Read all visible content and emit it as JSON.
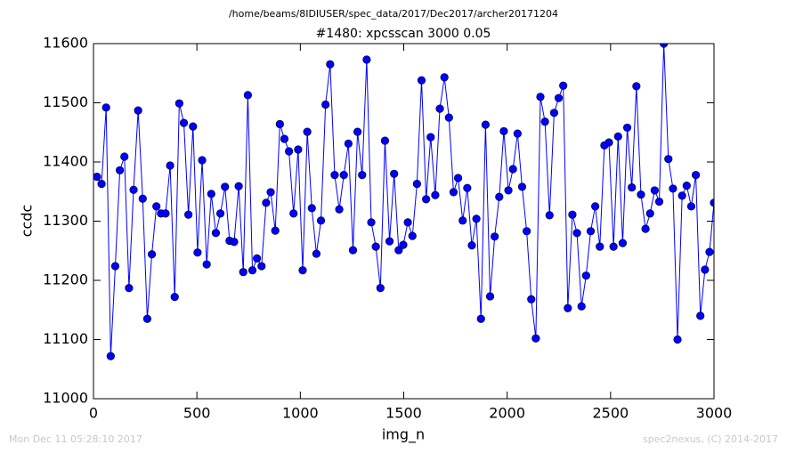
{
  "chart_data": {
    "type": "line",
    "suptitle": "/home/beams/8IDIUSER/spec_data/2017/Dec2017/archer20171204",
    "title": "#1480: xpcsscan 3000 0.05",
    "xlabel": "img_n",
    "ylabel": "ccdc",
    "timestamp": "Mon Dec 11 05:28:10 2017",
    "credit": "spec2nexus, (C) 2014-2017",
    "color": "#0000ff",
    "x": [
      17,
      39.1,
      61.2,
      83.3,
      105.4,
      127.5,
      149.6,
      171.7,
      193.8,
      215.9,
      238,
      260.1,
      282.2,
      304.3,
      326.4,
      348.5,
      370.6,
      392.7,
      414.8,
      436.9,
      459,
      481.1,
      503.2,
      525.3,
      547.4,
      569.5,
      591.6,
      613.7,
      635.8,
      657.9,
      680,
      702.1,
      724.2,
      746.3,
      768.4,
      790.5,
      812.6,
      834.7,
      856.8,
      878.9,
      901,
      923.1,
      945.2,
      967.3,
      989.4,
      1011.5,
      1033.6,
      1055.7,
      1077.8,
      1099.9,
      1122,
      1144.1,
      1166.2,
      1188.3,
      1210.4,
      1232.5,
      1254.6,
      1276.7,
      1298.8,
      1320.9,
      1343,
      1365.1,
      1387.2,
      1409.3,
      1431.4,
      1453.5,
      1475.6,
      1497.7,
      1519.8,
      1541.9,
      1564,
      1586.1,
      1608.2,
      1630.3,
      1652.4,
      1674.5,
      1696.6,
      1718.7,
      1740.8,
      1762.9,
      1785,
      1807.1,
      1829.2,
      1851.3,
      1873.4,
      1895.5,
      1917.6,
      1939.7,
      1961.8,
      1983.9,
      2006,
      2028.1,
      2050.2,
      2072.3,
      2094.4,
      2116.5,
      2138.6,
      2160.7,
      2182.8,
      2204.9,
      2227,
      2249.1,
      2271.2,
      2293.3,
      2315.4,
      2337.5,
      2359.6,
      2381.7,
      2403.8,
      2425.9,
      2448,
      2470.1,
      2492.2,
      2514.3,
      2536.4,
      2558.5,
      2580.6,
      2602.7,
      2624.8,
      2646.9,
      2669,
      2691.1,
      2713.2,
      2735.3,
      2757.4,
      2779.5,
      2801.6,
      2823.7,
      2845.8,
      2867.9,
      2890,
      2912.1,
      2934.2,
      2956.3,
      2978.4,
      3000
    ],
    "values": [
      11375,
      11363,
      11492,
      11072,
      11224,
      11386,
      11409,
      11187,
      11353,
      11487,
      11338,
      11135,
      11244,
      11325,
      11313,
      11313,
      11394,
      11172,
      11499,
      11466,
      11311,
      11460,
      11247,
      11403,
      11227,
      11346,
      11280,
      11313,
      11358,
      11267,
      11265,
      11359,
      11214,
      11513,
      11217,
      11237,
      11224,
      11331,
      11349,
      11284,
      11464,
      11439,
      11418,
      11313,
      11421,
      11217,
      11451,
      11322,
      11245,
      11301,
      11497,
      11565,
      11378,
      11320,
      11378,
      11431,
      11251,
      11451,
      11378,
      11573,
      11298,
      11257,
      11187,
      11436,
      11266,
      11380,
      11251,
      11260,
      11298,
      11275,
      11363,
      11538,
      11337,
      11442,
      11344,
      11490,
      11543,
      11475,
      11349,
      11373,
      11301,
      11356,
      11259,
      11304,
      11135,
      11463,
      11173,
      11274,
      11341,
      11452,
      11352,
      11388,
      11448,
      11358,
      11283,
      11168,
      11102,
      11510,
      11468,
      11310,
      11483,
      11508,
      11529,
      11153,
      11311,
      11280,
      11156,
      11208,
      11283,
      11325,
      11257,
      11428,
      11433,
      11257,
      11443,
      11263,
      11458,
      11357,
      11528,
      11345,
      11287,
      11313,
      11352,
      11333,
      11600,
      11405,
      11355,
      11100,
      11343,
      11360,
      11325,
      11378,
      11140,
      11218,
      11248,
      11331
    ],
    "xlim": [
      0,
      3000
    ],
    "xticks": [
      0,
      500,
      1000,
      1500,
      2000,
      2500,
      3000
    ],
    "ylim": [
      11000,
      11600
    ],
    "yticks": [
      11000,
      11100,
      11200,
      11300,
      11400,
      11500,
      11600
    ]
  }
}
